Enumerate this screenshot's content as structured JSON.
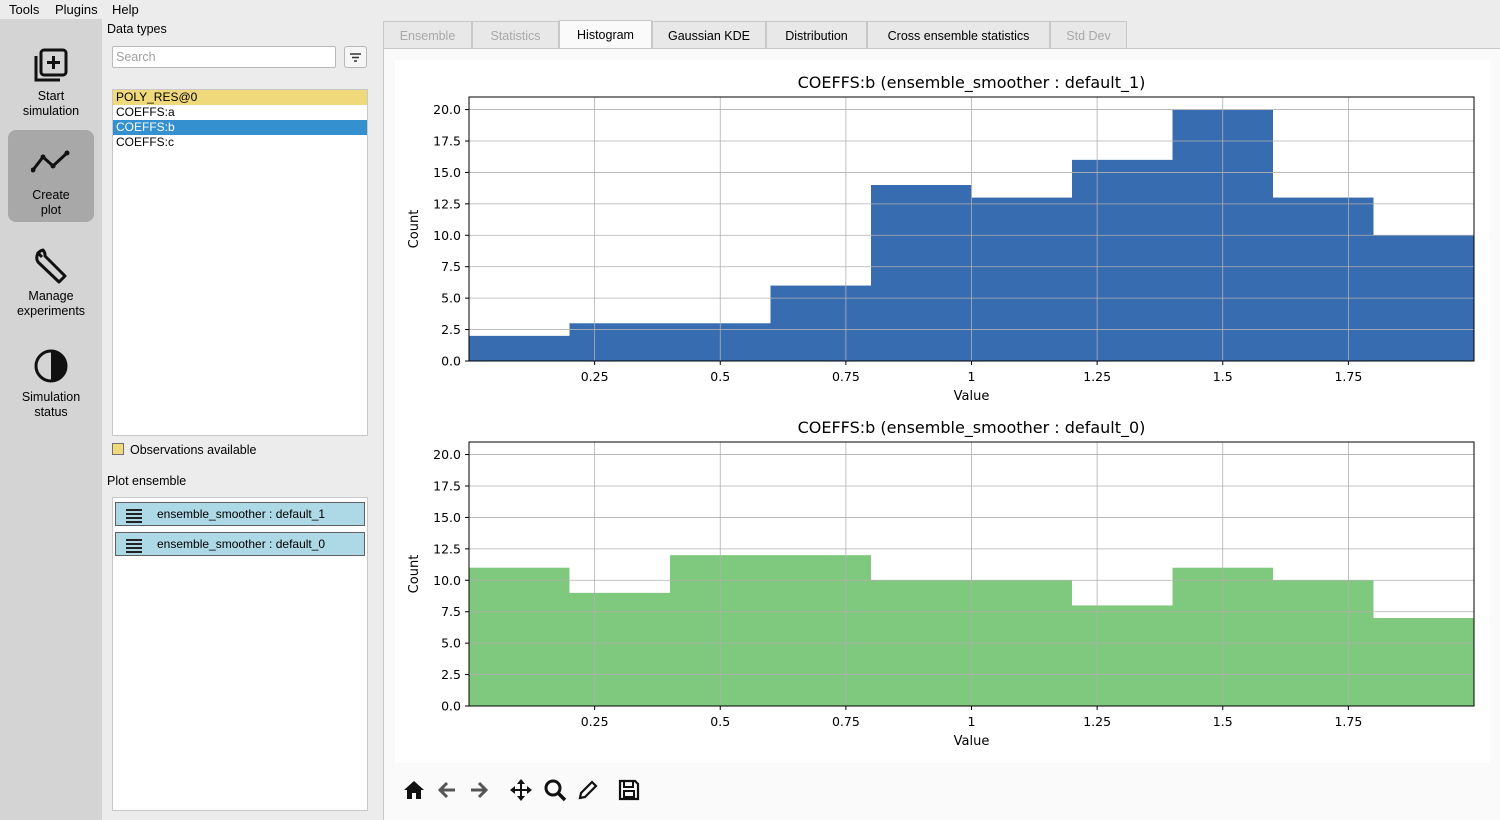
{
  "menu": {
    "tools": "Tools",
    "plugins": "Plugins",
    "help": "Help"
  },
  "sidebar": {
    "start": "Start\nsimulation",
    "create": "Create\nplot",
    "manage": "Manage\nexperiments",
    "status": "Simulation\nstatus"
  },
  "data_types": {
    "label": "Data types",
    "search_placeholder": "Search",
    "items": [
      "POLY_RES@0",
      "COEFFS:a",
      "COEFFS:b",
      "COEFFS:c"
    ],
    "observations_label": "Observations available"
  },
  "plot_ensemble": {
    "label": "Plot ensemble",
    "items": [
      "ensemble_smoother : default_1",
      "ensemble_smoother : default_0"
    ]
  },
  "tabs": [
    "Ensemble",
    "Statistics",
    "Histogram",
    "Gaussian KDE",
    "Distribution",
    "Cross ensemble statistics",
    "Std Dev"
  ],
  "colors": {
    "series_1": "#386cb0",
    "series_0": "#7fc97f",
    "selected": "#3590d0",
    "observation": "#f0d97a"
  },
  "chart_data": [
    {
      "type": "bar",
      "title": "COEFFS:b (ensemble_smoother : default_1)",
      "xlabel": "Value",
      "ylabel": "Count",
      "bin_edges": [
        0.0,
        0.2,
        0.4,
        0.6,
        0.8,
        1.0,
        1.2,
        1.4,
        1.6,
        1.8,
        2.0
      ],
      "values": [
        2,
        3,
        3,
        6,
        14,
        13,
        16,
        20,
        13,
        10
      ],
      "xticks": [
        0.25,
        0.5,
        0.75,
        1,
        1.25,
        1.5,
        1.75
      ],
      "xtick_labels": [
        "0.25",
        "0.5",
        "0.75",
        "1",
        "1.25",
        "1.5",
        "1.75"
      ],
      "yticks": [
        0.0,
        2.5,
        5.0,
        7.5,
        10.0,
        12.5,
        15.0,
        17.5,
        20.0
      ],
      "ytick_labels": [
        "0.0",
        "2.5",
        "5.0",
        "7.5",
        "10.0",
        "12.5",
        "15.0",
        "17.5",
        "20.0"
      ],
      "xlim": [
        0.0,
        2.0
      ],
      "ylim": [
        0,
        21
      ],
      "grid": true,
      "color": "#386cb0"
    },
    {
      "type": "bar",
      "title": "COEFFS:b (ensemble_smoother : default_0)",
      "xlabel": "Value",
      "ylabel": "Count",
      "bin_edges": [
        0.0,
        0.2,
        0.4,
        0.6,
        0.8,
        1.0,
        1.2,
        1.4,
        1.6,
        1.8,
        2.0
      ],
      "values": [
        11,
        9,
        12,
        12,
        10,
        10,
        8,
        11,
        10,
        7
      ],
      "xticks": [
        0.25,
        0.5,
        0.75,
        1,
        1.25,
        1.5,
        1.75
      ],
      "xtick_labels": [
        "0.25",
        "0.5",
        "0.75",
        "1",
        "1.25",
        "1.5",
        "1.75"
      ],
      "yticks": [
        0.0,
        2.5,
        5.0,
        7.5,
        10.0,
        12.5,
        15.0,
        17.5,
        20.0
      ],
      "ytick_labels": [
        "0.0",
        "2.5",
        "5.0",
        "7.5",
        "10.0",
        "12.5",
        "15.0",
        "17.5",
        "20.0"
      ],
      "xlim": [
        0.0,
        2.0
      ],
      "ylim": [
        0,
        21
      ],
      "grid": true,
      "color": "#7fc97f"
    }
  ]
}
